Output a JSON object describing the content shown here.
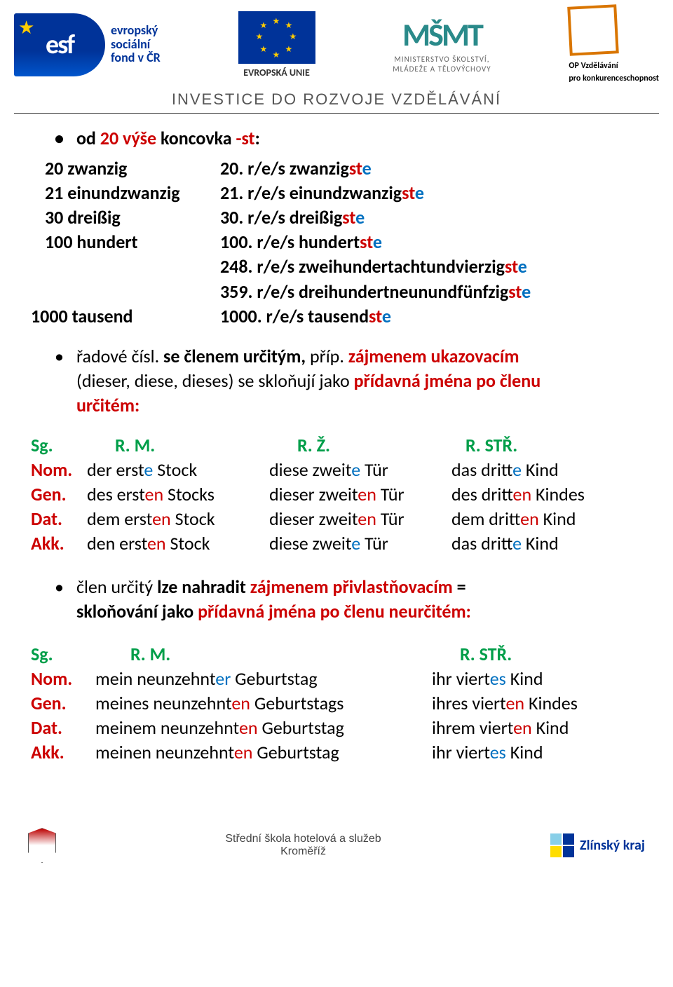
{
  "header": {
    "esf_abbrev": "esf",
    "esf_caption_l1": "evropský",
    "esf_caption_l2": "sociální",
    "esf_caption_l3": "fond v ČR",
    "eu_caption": "EVROPSKÁ UNIE",
    "msmt_logo": "MŠMT",
    "msmt_line1": "MINISTERSTVO ŠKOLSTVÍ,",
    "msmt_line2": "MLÁDEŽE A TĚLOVÝCHOVY",
    "op_line1": "OP Vzdělávání",
    "op_line2": "pro konkurenceschopnost",
    "tagline": "INVESTICE DO ROZVOJE VZDĚLÁVÁNÍ"
  },
  "colors": {
    "red": "#cc0000",
    "blue": "#0070c0",
    "green": "#009e49",
    "black": "#000000"
  },
  "b1": {
    "p1": "od ",
    "p2": "20 výše",
    "p3": " koncovka ",
    "p4": "-st",
    "p5": ":"
  },
  "rows": [
    {
      "l1": "20 zwanzig",
      "r1": "20. r/e/s zwanzig",
      "r2": "st",
      "r3": "e"
    },
    {
      "l1": "21 einundzwanzig",
      "r1": "21. r/e/s einundzwanzig",
      "r2": "st",
      "r3": "e"
    },
    {
      "l1": "30 dreißig",
      "r1": "30. r/e/s dreißig",
      "r2": "st",
      "r3": "e"
    },
    {
      "l1": "100 hundert",
      "r1": "100. r/e/s hundert",
      "r2": "st",
      "r3": "e"
    }
  ],
  "row248": {
    "r1": "248. r/e/s zweihundertachtundvierzig",
    "r2": "st",
    "r3": "e"
  },
  "row359": {
    "r1": "359. r/e/s dreihundertneunundfünfzig",
    "r2": "st",
    "r3": "e"
  },
  "row1000": {
    "l1": "1000 tausend",
    "r1": "1000. r/e/s tausend",
    "r2": "st",
    "r3": "e"
  },
  "b2": {
    "p1": "řadové čísl. ",
    "p2": "se členem určitým,",
    "p3": " příp. ",
    "p4": "zájmenem ukazovacím",
    "p5": "(dieser, diese, dieses) se skloňují jako ",
    "p6": "přídavná jména po členu",
    "p7": "určitém:"
  },
  "hdrA": {
    "sg": "Sg.",
    "rm": "R. M.",
    "rz": "R. Ž.",
    "rs": "R. STŘ."
  },
  "declA": [
    {
      "case": "Nom.",
      "m1": "der erst",
      "m2": "e",
      "m3": " Stock",
      "f1": "diese zweit",
      "f2": "e",
      "f3": " Tür",
      "n1": "das dritt",
      "n2": "e",
      "n3": " Kind"
    },
    {
      "case": "Gen.",
      "m1": "des erst",
      "m2": "en",
      "m3": " Stocks",
      "f1": "dieser zweit",
      "f2": "en",
      "f3": " Tür",
      "n1": "des dritt",
      "n2": "en",
      "n3": " Kindes"
    },
    {
      "case": "Dat.",
      "m1": "dem erst",
      "m2": "en",
      "m3": " Stock",
      "f1": "dieser zweit",
      "f2": "en",
      "f3": " Tür",
      "n1": "dem dritt",
      "n2": "en",
      "n3": " Kind"
    },
    {
      "case": "Akk.",
      "m1": "den erst",
      "m2": "en",
      "m3": " Stock",
      "f1": "diese zweit",
      "f2": "e",
      "f3": " Tür",
      "n1": "das dritt",
      "n2": "e",
      "n3": " Kind"
    }
  ],
  "declA_colors": [
    "blue",
    "red",
    "red",
    "red"
  ],
  "declA_f_colors": [
    "blue",
    "red",
    "red",
    "blue"
  ],
  "declA_n_colors": [
    "blue",
    "red",
    "red",
    "blue"
  ],
  "b3": {
    "p1": "člen určitý ",
    "p2": "lze nahradit ",
    "p3": "zájmenem přivlastňovacím",
    "p4": " = ",
    "p5": "skloňování jako ",
    "p6": "přídavná jména po členu neurčitém:"
  },
  "hdrB": {
    "sg": "Sg.",
    "rm": "R. M.",
    "rs": "R. STŘ."
  },
  "declB": [
    {
      "case": "Nom.",
      "m1": "mein neunzehnt",
      "m2": "er",
      "m3": " Geburtstag",
      "n1": "ihr viert",
      "n2": "es",
      "n3": " Kind"
    },
    {
      "case": "Gen.",
      "m1": "meines neunzehnt",
      "m2": "en",
      "m3": " Geburtstags",
      "n1": "ihres viert",
      "n2": "en",
      "n3": " Kindes"
    },
    {
      "case": "Dat.",
      "m1": "meinem neunzehnt",
      "m2": "en",
      "m3": " Geburtstag",
      "n1": "ihrem viert",
      "n2": "en",
      "n3": " Kind"
    },
    {
      "case": "Akk.",
      "m1": "meinen neunzehnt",
      "m2": "en",
      "m3": " Geburtstag",
      "n1": "ihr viert",
      "n2": "es",
      "n3": " Kind"
    }
  ],
  "declB_m_colors": [
    "blue",
    "red",
    "red",
    "red"
  ],
  "declB_n_colors": [
    "blue",
    "red",
    "red",
    "blue"
  ],
  "footer": {
    "line1": "Střední škola hotelová a služeb",
    "line2": "Kroměříž",
    "zk": "Zlínský kraj"
  }
}
